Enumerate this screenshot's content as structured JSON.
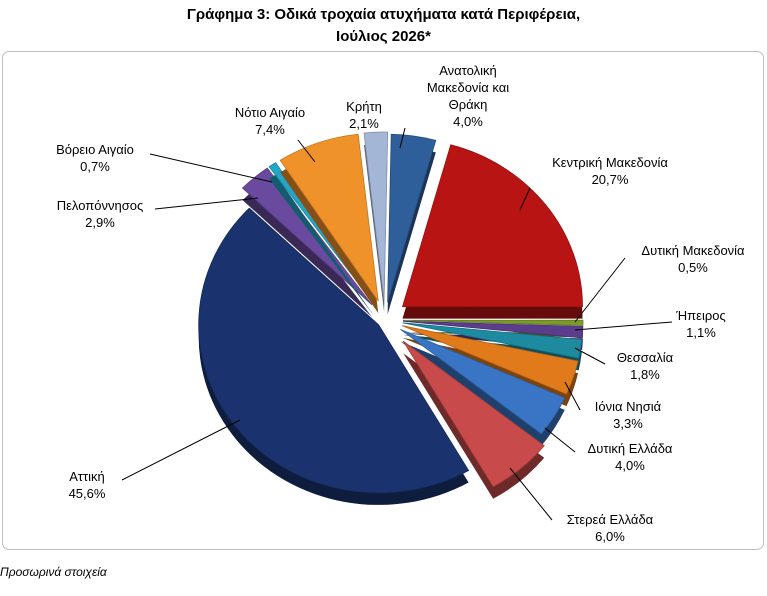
{
  "title_line1": "Γράφημα 3: Οδικά τροχαία ατυχήματα κατά Περιφέρεια,",
  "title_line2": "Ιούλιος 2026*",
  "footnote": "Προσωρινά στοιχεία",
  "chart_data": {
    "type": "pie",
    "title": "Γράφημα 3: Οδικά τροχαία ατυχήματα κατά Περιφέρεια, Ιούλιος 2026*",
    "unit": "%",
    "slices": [
      {
        "label": "Ανατολική Μακεδονία και Θράκη",
        "value": 4.0,
        "display": "4,0%",
        "color": "#2e5f9a"
      },
      {
        "label": "Κεντρική Μακεδονία",
        "value": 20.7,
        "display": "20,7%",
        "color": "#b81414"
      },
      {
        "label": "Δυτική Μακεδονία",
        "value": 0.5,
        "display": "0,5%",
        "color": "#7a9a2a"
      },
      {
        "label": "Ήπειρος",
        "value": 1.1,
        "display": "1,1%",
        "color": "#5b3d8c"
      },
      {
        "label": "Θεσσαλία",
        "value": 1.8,
        "display": "1,8%",
        "color": "#1d8aa0"
      },
      {
        "label": "Ιόνια Νησιά",
        "value": 3.3,
        "display": "3,3%",
        "color": "#e07a1a"
      },
      {
        "label": "Δυτική Ελλάδα",
        "value": 4.0,
        "display": "4,0%",
        "color": "#3a74c4"
      },
      {
        "label": "Στερεά Ελλάδα",
        "value": 6.0,
        "display": "6,0%",
        "color": "#c84a4a"
      },
      {
        "label": "Αττική",
        "value": 45.6,
        "display": "45,6%",
        "color": "#1a326e"
      },
      {
        "label": "Πελοπόννησος",
        "value": 2.9,
        "display": "2,9%",
        "color": "#6a4a9e"
      },
      {
        "label": "Βόρειο Αιγαίο",
        "value": 0.7,
        "display": "0,7%",
        "color": "#22a6c8"
      },
      {
        "label": "Νότιο Αιγαίο",
        "value": 7.4,
        "display": "7,4%",
        "color": "#f0922a"
      },
      {
        "label": "Κρήτη",
        "value": 2.1,
        "display": "2,1%",
        "color": "#a3b6d6"
      }
    ]
  }
}
